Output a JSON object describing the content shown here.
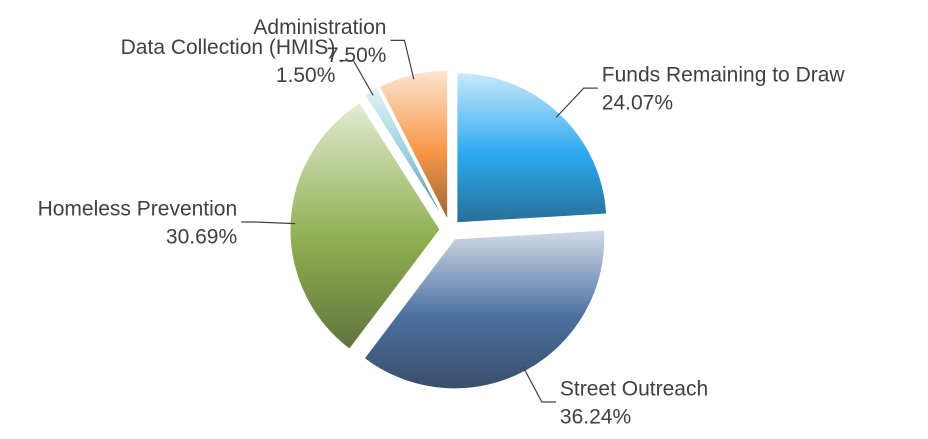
{
  "chart_data": {
    "type": "pie",
    "categories": [
      "Funds Remaining to Draw",
      "Street Outreach",
      "Homeless Prevention",
      "Data Collection (HMIS)",
      "Administration"
    ],
    "values": [
      24.07,
      36.24,
      30.69,
      1.5,
      7.5
    ],
    "value_labels": [
      "24.07%",
      "36.24%",
      "30.69%",
      "1.50%",
      "7.50%"
    ],
    "colors": [
      "#2aa8f0",
      "#4a6fa0",
      "#8fb050",
      "#92cddc",
      "#f79646"
    ],
    "exploded": true
  }
}
